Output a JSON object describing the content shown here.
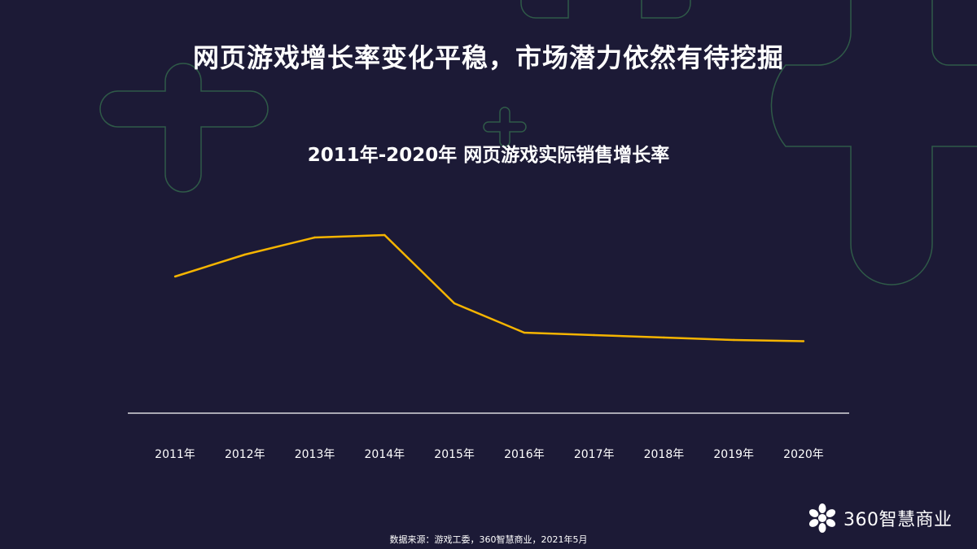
{
  "title": "网页游戏增长率变化平稳，市场潜力依然有待挖掘",
  "chart_data": {
    "type": "line",
    "title": "2011年-2020年 网页游戏实际销售增长率",
    "categories": [
      "2011年",
      "2012年",
      "2013年",
      "2014年",
      "2015年",
      "2016年",
      "2017年",
      "2018年",
      "2019年",
      "2020年"
    ],
    "series": [
      {
        "values": [
          56,
          65,
          72,
          73,
          45,
          33,
          32,
          31,
          30,
          29.5
        ]
      }
    ],
    "ylim": [
      0,
      100
    ],
    "grid": false,
    "y_axis_shown": false,
    "colors": {
      "line": "#f5b400",
      "axis": "#ffffff",
      "background": "#1c1a36",
      "decoration": "#2f5a48"
    }
  },
  "source": "数据来源：游戏工委，360智慧商业，2021年5月",
  "logo": {
    "text": "360智慧商业",
    "icon": "flower-icon"
  }
}
